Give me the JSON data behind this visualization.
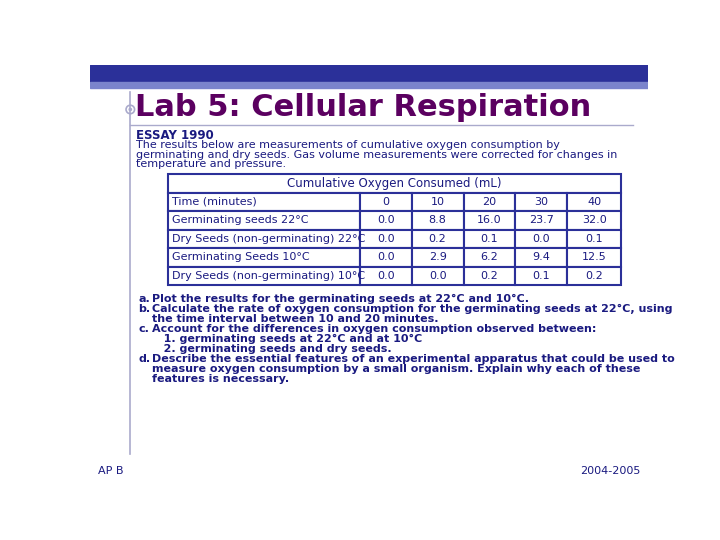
{
  "title": "Lab 5: Cellular Respiration",
  "title_color": "#5B0060",
  "header_bar_color": "#2B3099",
  "header_bar2_color": "#7B84CC",
  "background_color": "#FFFFFF",
  "section_label": "ESSAY 1990",
  "intro_text_lines": [
    "The results below are measurements of cumulative oxygen consumption by",
    "germinating and dry seeds. Gas volume measurements were corrected for changes in",
    "temperature and pressure."
  ],
  "table_header": "Cumulative Oxygen Consumed (mL)",
  "table_col_headers": [
    "Time (minutes)",
    "0",
    "10",
    "20",
    "30",
    "40"
  ],
  "table_rows": [
    [
      "Germinating seeds 22°C",
      "0.0",
      "8.8",
      "16.0",
      "23.7",
      "32.0"
    ],
    [
      "Dry Seeds (non-germinating) 22°C",
      "0.0",
      "0.2",
      "0.1",
      "0.0",
      "0.1"
    ],
    [
      "Germinating Seeds 10°C",
      "0.0",
      "2.9",
      "6.2",
      "9.4",
      "12.5"
    ],
    [
      "Dry Seeds (non-germinating) 10°C",
      "0.0",
      "0.0",
      "0.2",
      "0.1",
      "0.2"
    ]
  ],
  "question_lines": [
    [
      "a.",
      "Plot the results for the germinating seeds at 22°C and 10°C."
    ],
    [
      "b.",
      "Calculate the rate of oxygen consumption for the germinating seeds at 22°C, using"
    ],
    [
      "",
      "the time interval between 10 and 20 minutes."
    ],
    [
      "c.",
      "Account for the differences in oxygen consumption observed between:"
    ],
    [
      "",
      "   1. germinating seeds at 22°C and at 10°C"
    ],
    [
      "",
      "   2. germinating seeds and dry seeds."
    ],
    [
      "d.",
      "Describe the essential features of an experimental apparatus that could be used to"
    ],
    [
      "",
      "measure oxygen consumption by a small organism. Explain why each of these"
    ],
    [
      "",
      "features is necessary."
    ]
  ],
  "footer_left": "AP B",
  "footer_right": "2004-2005",
  "text_color": "#1A1A80",
  "table_border_color": "#2B3099",
  "left_bar_color": "#8888BB"
}
